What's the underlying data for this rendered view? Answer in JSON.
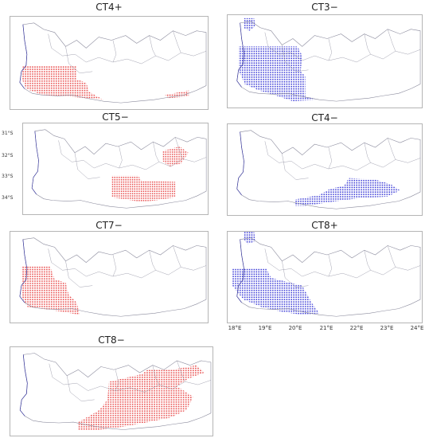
{
  "colors": {
    "red": "#e84a4a",
    "blue": "#3b3bd6",
    "border": "#8a8a9c",
    "coast": "#3a3aa0"
  },
  "panels": [
    {
      "id": "ct4plus",
      "title": "CT4+",
      "color": "red"
    },
    {
      "id": "ct3minus",
      "title": "CT3−",
      "color": "blue"
    },
    {
      "id": "ct5minus",
      "title": "CT5−",
      "color": "red"
    },
    {
      "id": "ct4minus",
      "title": "CT4−",
      "color": "blue"
    },
    {
      "id": "ct7minus",
      "title": "CT7−",
      "color": "red"
    },
    {
      "id": "ct8plus",
      "title": "CT8+",
      "color": "blue"
    },
    {
      "id": "ct8minus",
      "title": "CT8−",
      "color": "red"
    }
  ],
  "lat_labels": [
    "31°S",
    "32°S",
    "33°S",
    "34°S"
  ],
  "lon_labels": [
    "18°E",
    "19°E",
    "20°E",
    "21°E",
    "22°E",
    "23°E",
    "24°E"
  ]
}
